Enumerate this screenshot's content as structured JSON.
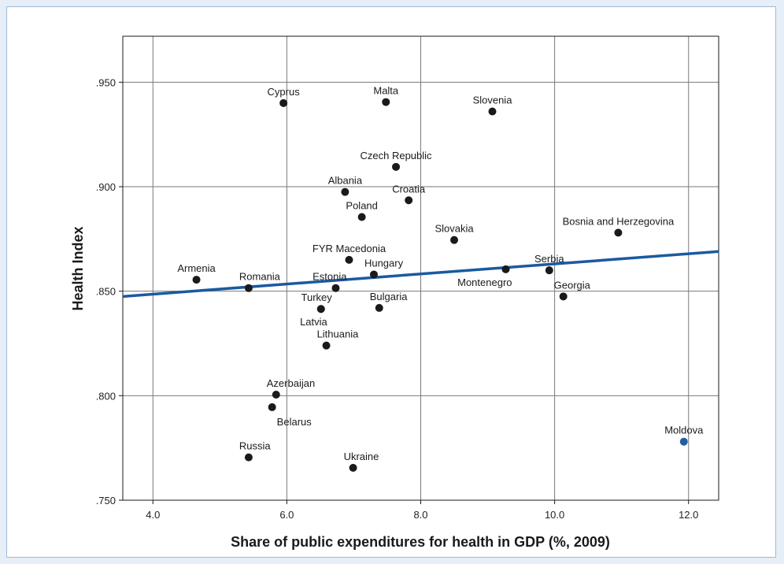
{
  "chart_data": {
    "type": "scatter",
    "xlabel": "Share of public expenditures for health in GDP (%, 2009)",
    "ylabel": "Health Index",
    "xlim": [
      3.55,
      12.45
    ],
    "ylim": [
      0.75,
      0.972
    ],
    "x_ticks": [
      4.0,
      6.0,
      8.0,
      10.0,
      12.0
    ],
    "x_tick_labels": [
      "4.0",
      "6.0",
      "8.0",
      "10.0",
      "12.0"
    ],
    "y_ticks": [
      0.75,
      0.8,
      0.85,
      0.9,
      0.95
    ],
    "y_tick_labels": [
      ".750",
      ".800",
      ".850",
      ".900",
      ".950"
    ],
    "grid": true,
    "point_color": "#1a1a1a",
    "highlight_color": "#1f5fa0",
    "fit_line_color": "#1a5aa0",
    "fit_line": {
      "x": [
        3.55,
        12.45
      ],
      "y": [
        0.8475,
        0.869
      ]
    },
    "points": [
      {
        "label": "Cyprus",
        "x": 5.95,
        "y": 0.94,
        "label_pos": "above"
      },
      {
        "label": "Malta",
        "x": 7.48,
        "y": 0.9405,
        "label_pos": "above"
      },
      {
        "label": "Slovenia",
        "x": 9.07,
        "y": 0.936,
        "label_pos": "above"
      },
      {
        "label": "Czech Republic",
        "x": 7.63,
        "y": 0.9095,
        "label_pos": "above"
      },
      {
        "label": "Albania",
        "x": 6.87,
        "y": 0.8975,
        "label_pos": "above"
      },
      {
        "label": "Croatia",
        "x": 7.82,
        "y": 0.8935,
        "label_pos": "above"
      },
      {
        "label": "Poland",
        "x": 7.12,
        "y": 0.8855,
        "label_pos": "above"
      },
      {
        "label": "Slovakia",
        "x": 8.5,
        "y": 0.8745,
        "label_pos": "above"
      },
      {
        "label": "Bosnia and Herzegovina",
        "x": 10.95,
        "y": 0.878,
        "label_pos": "above"
      },
      {
        "label": "FYR Macedonia",
        "x": 6.93,
        "y": 0.865,
        "label_pos": "above"
      },
      {
        "label": "Hungary",
        "x": 7.3,
        "y": 0.858,
        "label_pos": "above-right"
      },
      {
        "label": "Montenegro",
        "x": 9.27,
        "y": 0.8605,
        "label_pos": "below-left"
      },
      {
        "label": "Serbia",
        "x": 9.92,
        "y": 0.86,
        "label_pos": "above"
      },
      {
        "label": "Armenia",
        "x": 4.65,
        "y": 0.8555,
        "label_pos": "above"
      },
      {
        "label": "Romania",
        "x": 5.43,
        "y": 0.8515,
        "label_pos": "above-right"
      },
      {
        "label": "Estonia",
        "x": 6.73,
        "y": 0.8515,
        "label_pos": "above-left"
      },
      {
        "label": "Georgia",
        "x": 10.13,
        "y": 0.8475,
        "label_pos": "above-right"
      },
      {
        "label": "Turkey",
        "x": 6.51,
        "y": 0.8415,
        "label_pos": "above-left"
      },
      {
        "label": "Latvia",
        "x": 6.51,
        "y": 0.8415,
        "label_pos": "below-left"
      },
      {
        "label": "Bulgaria",
        "x": 7.38,
        "y": 0.842,
        "label_pos": "above-right"
      },
      {
        "label": "Lithuania",
        "x": 6.59,
        "y": 0.824,
        "label_pos": "above-right"
      },
      {
        "label": "Azerbaijan",
        "x": 5.84,
        "y": 0.8005,
        "label_pos": "above-right"
      },
      {
        "label": "Belarus",
        "x": 5.78,
        "y": 0.7945,
        "label_pos": "below-right"
      },
      {
        "label": "Russia",
        "x": 5.43,
        "y": 0.7705,
        "label_pos": "above-right"
      },
      {
        "label": "Ukraine",
        "x": 6.99,
        "y": 0.7655,
        "label_pos": "above-right"
      },
      {
        "label": "Moldova",
        "x": 11.93,
        "y": 0.778,
        "label_pos": "above",
        "highlight": true
      }
    ]
  }
}
